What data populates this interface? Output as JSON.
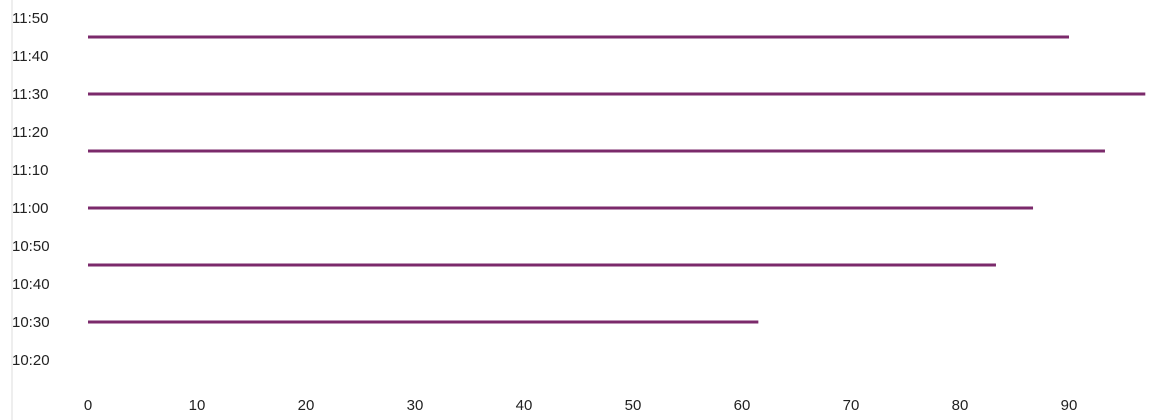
{
  "chart_data": {
    "type": "bar",
    "orientation": "horizontal",
    "title": "",
    "xlabel": "",
    "ylabel": "",
    "xlim": [
      0,
      97
    ],
    "x_ticks": [
      "0",
      "10",
      "20",
      "30",
      "40",
      "50",
      "60",
      "70",
      "80",
      "90"
    ],
    "y_ticks": [
      "11:50",
      "11:40",
      "11:30",
      "11:20",
      "11:10",
      "11:00",
      "10:50",
      "10:40",
      "10:30",
      "10:20"
    ],
    "categories": [
      "11:45",
      "11:30",
      "11:15",
      "11:00",
      "10:45",
      "10:30"
    ],
    "values": [
      90,
      97,
      93.3,
      86.7,
      83.3,
      61.5
    ],
    "grid": false,
    "colors": {
      "bar": "#7b2a6b"
    }
  }
}
